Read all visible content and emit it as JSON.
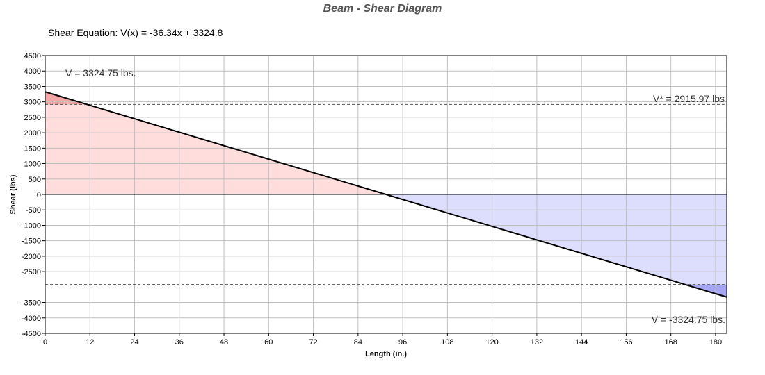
{
  "chart_data": {
    "type": "area",
    "title": "Beam - Shear Diagram",
    "equation": "Shear Equation:  V(x) = -36.34x + 3324.8",
    "xlabel": "Length (in.)",
    "ylabel": "Shear (lbs)",
    "xlim": [
      0,
      183
    ],
    "ylim": [
      -4500,
      4500
    ],
    "x_ticks": [
      0,
      12,
      24,
      36,
      48,
      60,
      72,
      84,
      96,
      108,
      120,
      132,
      144,
      156,
      168,
      180
    ],
    "y_ticks": [
      4500,
      4000,
      3500,
      3000,
      2500,
      2000,
      1500,
      1000,
      500,
      0,
      -500,
      -1000,
      -1500,
      -2000,
      -2500,
      -3500,
      -4000,
      -4500
    ],
    "grid": true,
    "series": [
      {
        "x": [
          0,
          183
        ],
        "y": [
          3324.75,
          -3324.75
        ]
      }
    ],
    "limit_lines": [
      2915.97,
      -2915.97
    ],
    "annotations": {
      "v_max": "V = 3324.75 lbs.",
      "v_star": "V* = 2915.97 lbs",
      "v_min": "V = -3324.75 lbs."
    },
    "colors": {
      "positive_fill": "#ffdddd",
      "positive_exceed_fill": "#f4a5a5",
      "negative_fill": "#ddddfd",
      "negative_exceed_fill": "#a5a5f4",
      "line": "#000000",
      "grid": "#c0c0c0"
    }
  }
}
